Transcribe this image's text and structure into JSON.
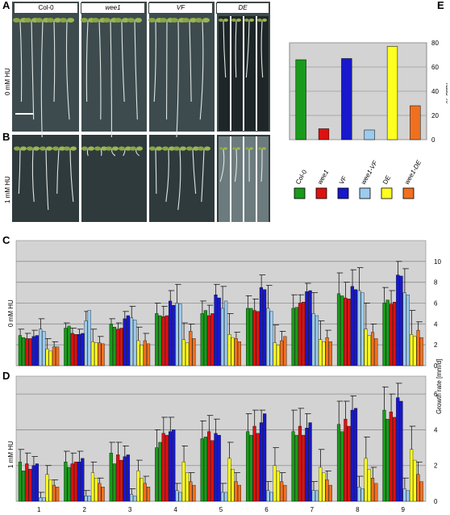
{
  "panels": {
    "A": "A",
    "B": "B",
    "C": "C",
    "D": "D",
    "E": "E"
  },
  "photo": {
    "genotypes": [
      "Col-0",
      "wee1",
      "VF",
      "DE"
    ],
    "row_labels": [
      "0 mM HU",
      "1 mM HU"
    ],
    "background_color": "#3d4b4e"
  },
  "colors": {
    "Col-0": "#1a9a1a",
    "wee1": "#dd1111",
    "VF": "#1818cc",
    "wee1-VF": "#9ccbee",
    "DE": "#ffff22",
    "wee1-DE": "#f07020"
  },
  "legend": {
    "labels": [
      "Col-0",
      "wee1",
      "VF",
      "wee1-VF",
      "DE",
      "wee1-DE"
    ],
    "italic": [
      false,
      true,
      false,
      true,
      false,
      true
    ]
  },
  "side_axis_label": "Growth rate [mm/d]",
  "chart_data": [
    {
      "id": "E",
      "type": "bar",
      "categories": [
        "Col-0",
        "wee1",
        "VF",
        "wee1-VF",
        "DE",
        "wee1-DE"
      ],
      "values": [
        66,
        9,
        67,
        8,
        77,
        28
      ],
      "ylabel": "ratio %",
      "ylim": [
        0,
        80
      ],
      "yticks": [
        0,
        20,
        40,
        60,
        80
      ],
      "grid": true,
      "legend": "bottom"
    },
    {
      "id": "C",
      "type": "bar",
      "row_label": "0 mM HU",
      "categories": [
        "1",
        "2",
        "3",
        "4",
        "5",
        "6",
        "7",
        "8",
        "9"
      ],
      "ylim": [
        0,
        12
      ],
      "yticks": [
        0,
        2,
        4,
        6,
        8,
        10
      ],
      "grid": true,
      "series": [
        {
          "values": [
            [
              2.9,
              2.7
            ],
            [
              3.6,
              3.8
            ],
            [
              4.0,
              3.7
            ],
            [
              5.0,
              4.8
            ],
            [
              5.0,
              5.3
            ],
            [
              5.5,
              5.5
            ],
            [
              5.5,
              5.6
            ],
            [
              6.9,
              6.7
            ],
            [
              6.0,
              6.3
            ]
          ],
          "err": [
            0.6,
            0.5,
            0.5,
            1.0,
            1.2,
            1.2,
            1.3,
            2.0,
            1.5
          ]
        },
        {
          "values": [
            [
              2.6,
              2.6
            ],
            [
              3.1,
              3.0
            ],
            [
              3.5,
              3.6
            ],
            [
              4.7,
              4.8
            ],
            [
              4.8,
              5.0
            ],
            [
              5.3,
              5.2
            ],
            [
              6.0,
              6.1
            ],
            [
              6.5,
              6.4
            ],
            [
              5.9,
              6.1
            ]
          ],
          "err": [
            0.5,
            0.5,
            0.6,
            1.0,
            1.0,
            1.1,
            0.8,
            1.5,
            1.3
          ]
        },
        {
          "values": [
            [
              2.8,
              2.9
            ],
            [
              3.0,
              3.1
            ],
            [
              4.5,
              4.8
            ],
            [
              6.2,
              5.8
            ],
            [
              6.8,
              6.5
            ],
            [
              7.5,
              7.3
            ],
            [
              7.1,
              7.2
            ],
            [
              7.6,
              7.3
            ],
            [
              8.7,
              8.6
            ]
          ],
          "err": [
            0.6,
            0.5,
            0.7,
            1.0,
            1.0,
            1.2,
            0.8,
            1.6,
            1.3
          ]
        },
        {
          "values": [
            [
              3.5,
              3.3
            ],
            [
              4.3,
              5.3
            ],
            [
              4.6,
              4.4
            ],
            [
              6.0,
              5.9
            ],
            [
              5.5,
              6.2
            ],
            [
              5.5,
              5.2
            ],
            [
              5.0,
              4.8
            ],
            [
              7.2,
              7.0
            ],
            [
              7.0,
              6.8
            ]
          ],
          "err": [
            1.0,
            0.9,
            1.1,
            1.8,
            2.1,
            2.2,
            2.0,
            2.2,
            2.3
          ]
        },
        {
          "values": [
            [
              1.6,
              1.4
            ],
            [
              2.3,
              2.2
            ],
            [
              2.4,
              2.0
            ],
            [
              2.5,
              2.2
            ],
            [
              3.0,
              2.7
            ],
            [
              2.2,
              2.0
            ],
            [
              2.5,
              2.3
            ],
            [
              3.5,
              2.9
            ],
            [
              3.0,
              2.8
            ]
          ],
          "err": [
            1.0,
            1.2,
            1.3,
            1.6,
            2.0,
            1.7,
            1.8,
            2.5,
            2.3
          ]
        },
        {
          "values": [
            [
              1.8,
              1.8
            ],
            [
              2.2,
              2.1
            ],
            [
              2.4,
              2.1
            ],
            [
              3.3,
              2.6
            ],
            [
              2.6,
              2.3
            ],
            [
              2.4,
              2.8
            ],
            [
              2.7,
              2.3
            ],
            [
              3.2,
              2.6
            ],
            [
              3.4,
              2.7
            ]
          ],
          "err": [
            0.5,
            0.6,
            0.7,
            0.7,
            0.6,
            0.9,
            0.7,
            0.8,
            0.8
          ]
        }
      ]
    },
    {
      "id": "D",
      "type": "bar",
      "row_label": "1 mM HU",
      "categories": [
        "1",
        "2",
        "3",
        "4",
        "5",
        "6",
        "7",
        "8",
        "9"
      ],
      "ylim": [
        0,
        7
      ],
      "yticks": [
        0,
        2,
        4,
        6
      ],
      "grid": true,
      "series": [
        {
          "values": [
            [
              2.2,
              1.7
            ],
            [
              2.2,
              1.9
            ],
            [
              2.7,
              2.1
            ],
            [
              3.0,
              3.3
            ],
            [
              3.5,
              3.6
            ],
            [
              3.9,
              3.7
            ],
            [
              3.9,
              3.7
            ],
            [
              4.3,
              3.9
            ],
            [
              5.1,
              4.6
            ]
          ],
          "err": [
            0.7,
            0.6,
            0.6,
            1.0,
            1.0,
            1.0,
            1.2,
            1.3,
            1.3
          ]
        },
        {
          "values": [
            [
              2.1,
              1.8
            ],
            [
              2.1,
              2.2
            ],
            [
              2.6,
              2.3
            ],
            [
              3.8,
              3.7
            ],
            [
              3.9,
              3.4
            ],
            [
              4.2,
              3.8
            ],
            [
              4.2,
              3.7
            ],
            [
              4.6,
              4.2
            ],
            [
              5.0,
              4.7
            ]
          ],
          "err": [
            0.6,
            0.6,
            0.7,
            0.9,
            0.9,
            0.9,
            1.0,
            1.0,
            1.0
          ]
        },
        {
          "values": [
            [
              2.0,
              2.1
            ],
            [
              2.2,
              2.4
            ],
            [
              2.5,
              2.6
            ],
            [
              3.9,
              4.0
            ],
            [
              3.8,
              3.7
            ],
            [
              4.4,
              4.9
            ],
            [
              4.1,
              4.4
            ],
            [
              5.1,
              5.2
            ],
            [
              5.8,
              5.6
            ]
          ],
          "err": [
            0.5,
            0.6,
            0.6,
            0.8,
            0.8,
            0.7,
            0.8,
            0.8,
            0.8
          ]
        },
        {
          "values": [
            [
              0.2,
              0.2
            ],
            [
              0.3,
              0.3
            ],
            [
              0.4,
              0.3
            ],
            [
              0.6,
              0.5
            ],
            [
              0.5,
              0.5
            ],
            [
              0.6,
              0.5
            ],
            [
              0.6,
              0.6
            ],
            [
              0.8,
              0.7
            ],
            [
              0.7,
              0.6
            ]
          ],
          "err": [
            0.3,
            0.3,
            0.3,
            0.4,
            0.5,
            0.5,
            0.5,
            0.6,
            0.6
          ]
        },
        {
          "values": [
            [
              1.5,
              1.2
            ],
            [
              1.6,
              1.3
            ],
            [
              1.7,
              1.3
            ],
            [
              2.2,
              1.6
            ],
            [
              2.4,
              1.8
            ],
            [
              2.0,
              1.7
            ],
            [
              1.9,
              1.6
            ],
            [
              2.4,
              1.8
            ],
            [
              2.9,
              2.3
            ]
          ],
          "err": [
            0.5,
            0.6,
            0.6,
            0.9,
            0.9,
            1.0,
            1.0,
            1.2,
            1.3
          ]
        },
        {
          "values": [
            [
              0.9,
              0.8
            ],
            [
              1.0,
              0.8
            ],
            [
              1.0,
              0.8
            ],
            [
              1.1,
              0.9
            ],
            [
              1.1,
              0.9
            ],
            [
              1.1,
              0.9
            ],
            [
              1.2,
              0.9
            ],
            [
              1.3,
              1.0
            ],
            [
              1.5,
              1.1
            ]
          ],
          "err": [
            0.3,
            0.3,
            0.4,
            0.5,
            0.5,
            0.5,
            0.5,
            0.6,
            0.7
          ]
        }
      ]
    }
  ]
}
